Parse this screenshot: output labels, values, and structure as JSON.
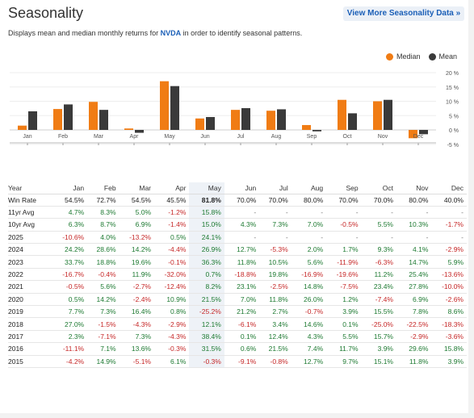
{
  "header": {
    "title": "Seasonality",
    "view_more_label": "View More Seasonality Data »",
    "subtitle_pre": "Displays mean and median monthly returns for ",
    "ticker": "NVDA",
    "subtitle_post": " in order to identify seasonal patterns."
  },
  "legend": {
    "median_label": "Median",
    "mean_label": "Mean"
  },
  "colors": {
    "median": "#f07c14",
    "mean": "#3a3a3a",
    "accent": "#1b5fb7",
    "positive": "#1e7a32",
    "negative": "#c62828"
  },
  "chart_data": {
    "type": "bar",
    "categories": [
      "Jan",
      "Feb",
      "Mar",
      "Apr",
      "May",
      "Jun",
      "Jul",
      "Aug",
      "Sep",
      "Oct",
      "Nov",
      "Dec"
    ],
    "series": [
      {
        "name": "Median",
        "values": [
          1.5,
          7.3,
          9.8,
          0.5,
          17.0,
          4.0,
          7.0,
          6.7,
          1.7,
          10.5,
          10.0,
          -2.9
        ]
      },
      {
        "name": "Mean",
        "values": [
          6.5,
          8.9,
          7.0,
          -1.0,
          15.3,
          4.5,
          7.6,
          7.2,
          -0.5,
          5.8,
          10.5,
          -1.5
        ]
      }
    ],
    "yticks": [
      "20 %",
      "15 %",
      "10 %",
      "5 %",
      "0 %",
      "-5 %"
    ],
    "ylim": [
      -5,
      20
    ]
  },
  "table": {
    "headers": [
      "Year",
      "Jan",
      "Feb",
      "Mar",
      "Apr",
      "May",
      "Jun",
      "Jul",
      "Aug",
      "Sep",
      "Oct",
      "Nov",
      "Dec"
    ],
    "rows": [
      [
        "Win Rate",
        "54.5%",
        "72.7%",
        "54.5%",
        "45.5%",
        "81.8%",
        "70.0%",
        "70.0%",
        "80.0%",
        "70.0%",
        "70.0%",
        "80.0%",
        "40.0%"
      ],
      [
        "11yr Avg",
        "4.7%",
        "8.3%",
        "5.0%",
        "-1.2%",
        "15.8%",
        "-",
        "-",
        "-",
        "-",
        "-",
        "-",
        "-"
      ],
      [
        "10yr Avg",
        "6.3%",
        "8.7%",
        "6.9%",
        "-1.4%",
        "15.0%",
        "4.3%",
        "7.3%",
        "7.0%",
        "-0.5%",
        "5.5%",
        "10.3%",
        "-1.7%"
      ],
      [
        "2025",
        "-10.6%",
        "4.0%",
        "-13.2%",
        "0.5%",
        "24.1%",
        "-",
        "-",
        "-",
        "-",
        "-",
        "-",
        "-"
      ],
      [
        "2024",
        "24.2%",
        "28.6%",
        "14.2%",
        "-4.4%",
        "26.9%",
        "12.7%",
        "-5.3%",
        "2.0%",
        "1.7%",
        "9.3%",
        "4.1%",
        "-2.9%"
      ],
      [
        "2023",
        "33.7%",
        "18.8%",
        "19.6%",
        "-0.1%",
        "36.3%",
        "11.8%",
        "10.5%",
        "5.6%",
        "-11.9%",
        "-6.3%",
        "14.7%",
        "5.9%"
      ],
      [
        "2022",
        "-16.7%",
        "-0.4%",
        "11.9%",
        "-32.0%",
        "0.7%",
        "-18.8%",
        "19.8%",
        "-16.9%",
        "-19.6%",
        "11.2%",
        "25.4%",
        "-13.6%"
      ],
      [
        "2021",
        "-0.5%",
        "5.6%",
        "-2.7%",
        "-12.4%",
        "8.2%",
        "23.1%",
        "-2.5%",
        "14.8%",
        "-7.5%",
        "23.4%",
        "27.8%",
        "-10.0%"
      ],
      [
        "2020",
        "0.5%",
        "14.2%",
        "-2.4%",
        "10.9%",
        "21.5%",
        "7.0%",
        "11.8%",
        "26.0%",
        "1.2%",
        "-7.4%",
        "6.9%",
        "-2.6%"
      ],
      [
        "2019",
        "7.7%",
        "7.3%",
        "16.4%",
        "0.8%",
        "-25.2%",
        "21.2%",
        "2.7%",
        "-0.7%",
        "3.9%",
        "15.5%",
        "7.8%",
        "8.6%"
      ],
      [
        "2018",
        "27.0%",
        "-1.5%",
        "-4.3%",
        "-2.9%",
        "12.1%",
        "-6.1%",
        "3.4%",
        "14.6%",
        "0.1%",
        "-25.0%",
        "-22.5%",
        "-18.3%"
      ],
      [
        "2017",
        "2.3%",
        "-7.1%",
        "7.3%",
        "-4.3%",
        "38.4%",
        "0.1%",
        "12.4%",
        "4.3%",
        "5.5%",
        "15.7%",
        "-2.9%",
        "-3.6%"
      ],
      [
        "2016",
        "-11.1%",
        "7.1%",
        "13.6%",
        "-0.3%",
        "31.5%",
        "0.6%",
        "21.5%",
        "7.4%",
        "11.7%",
        "3.9%",
        "29.6%",
        "15.8%"
      ],
      [
        "2015",
        "-4.2%",
        "14.9%",
        "-5.1%",
        "6.1%",
        "-0.3%",
        "-9.1%",
        "-0.8%",
        "12.7%",
        "9.7%",
        "15.1%",
        "11.8%",
        "3.9%"
      ]
    ]
  }
}
